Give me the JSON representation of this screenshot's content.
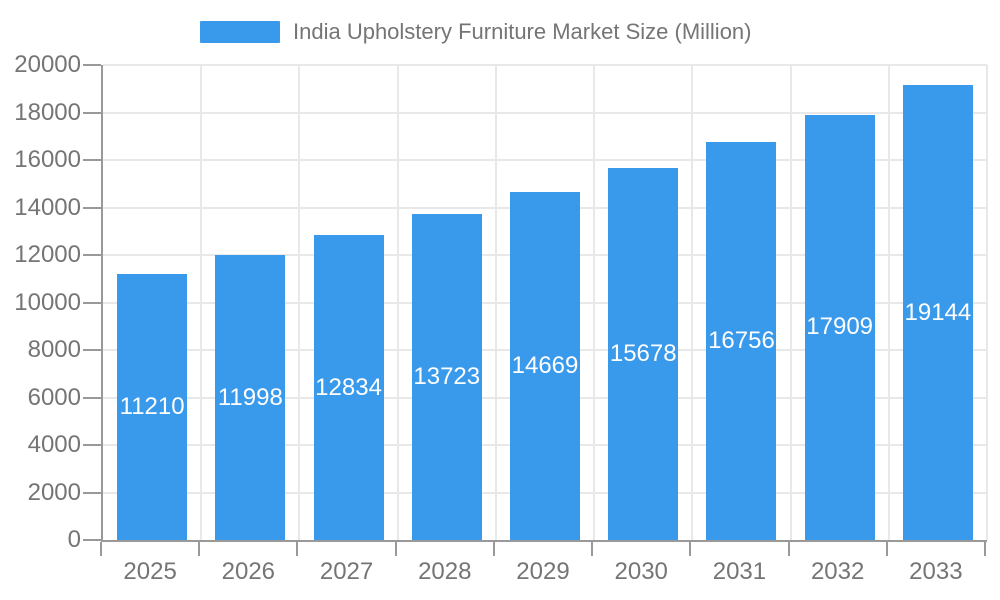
{
  "legend": {
    "label": "India Upholstery Furniture Market Size (Million)"
  },
  "chart_data": {
    "type": "bar",
    "title": "India Upholstery Furniture Market Size (Million)",
    "categories": [
      "2025",
      "2026",
      "2027",
      "2028",
      "2029",
      "2030",
      "2031",
      "2032",
      "2033"
    ],
    "values": [
      11210,
      11998,
      12834,
      13723,
      14669,
      15678,
      16756,
      17909,
      19144
    ],
    "xlabel": "",
    "ylabel": "",
    "ylim": [
      0,
      20000
    ],
    "ytick_step": 2000,
    "ytick_labels": [
      "0",
      "2000",
      "4000",
      "6000",
      "8000",
      "10000",
      "12000",
      "14000",
      "16000",
      "18000",
      "20000"
    ],
    "grid": true,
    "legend_position": "top",
    "value_labels": "inside-center",
    "colors": {
      "bar": "#3999EB",
      "value_text": "#FFFFFF",
      "axis_text": "#757575",
      "grid_line": "#E8E8E8",
      "axis_line": "#999999"
    }
  }
}
